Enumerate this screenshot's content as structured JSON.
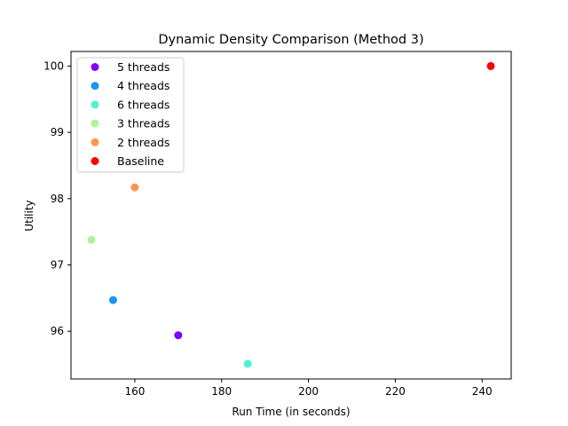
{
  "chart_data": {
    "type": "scatter",
    "title": "Dynamic Density Comparison (Method 3)",
    "xlabel": "Run Time (in seconds)",
    "ylabel": "Utility",
    "xlim": [
      145.3,
      246.7
    ],
    "ylim": [
      95.28,
      100.22
    ],
    "xticks": [
      160,
      180,
      200,
      220,
      240
    ],
    "yticks": [
      96,
      97,
      98,
      99,
      100
    ],
    "grid": false,
    "legend_position": "upper left",
    "series": [
      {
        "name": "5 threads",
        "color": "#8000ff",
        "points": [
          {
            "x": 170,
            "y": 95.94
          }
        ]
      },
      {
        "name": "4 threads",
        "color": "#1996f3",
        "points": [
          {
            "x": 155,
            "y": 96.47
          }
        ]
      },
      {
        "name": "6 threads",
        "color": "#4df3ce",
        "points": [
          {
            "x": 186,
            "y": 95.51
          }
        ]
      },
      {
        "name": "3 threads",
        "color": "#b2f396",
        "points": [
          {
            "x": 150,
            "y": 97.38
          }
        ]
      },
      {
        "name": "2 threads",
        "color": "#ff964f",
        "points": [
          {
            "x": 160,
            "y": 98.17
          }
        ]
      },
      {
        "name": "Baseline",
        "color": "#ff0000",
        "points": [
          {
            "x": 242,
            "y": 100.0
          }
        ]
      }
    ]
  }
}
